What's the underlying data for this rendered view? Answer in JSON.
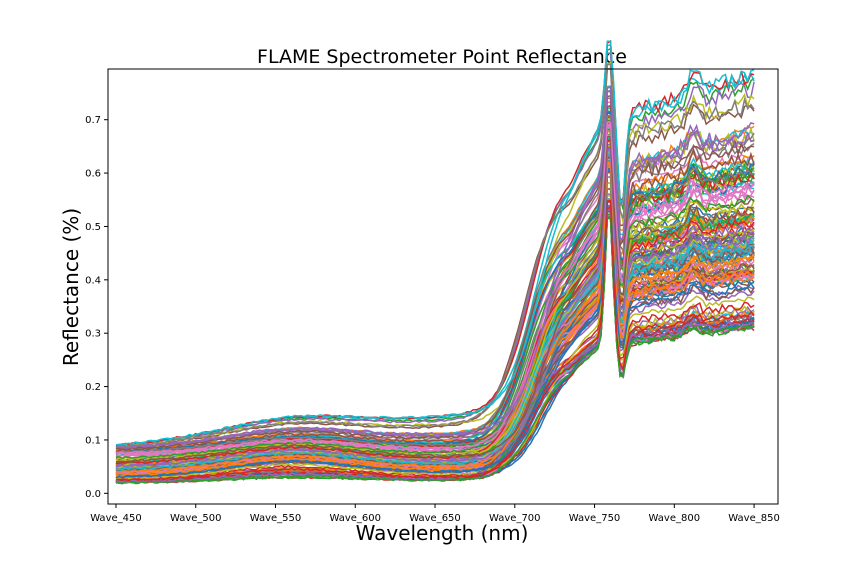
{
  "chart_data": {
    "type": "line",
    "title": "FLAME Spectrometer Point Reflectance",
    "xlabel": "Wavelength (nm)",
    "ylabel": "Reflectance (%)",
    "x_range": [
      450,
      850
    ],
    "xlim": [
      445,
      865
    ],
    "ylim": [
      -0.02,
      0.795
    ],
    "x_ticks": [
      {
        "value": 450,
        "label": "Wave_450"
      },
      {
        "value": 500,
        "label": "Wave_500"
      },
      {
        "value": 550,
        "label": "Wave_550"
      },
      {
        "value": 600,
        "label": "Wave_600"
      },
      {
        "value": 650,
        "label": "Wave_650"
      },
      {
        "value": 700,
        "label": "Wave_700"
      },
      {
        "value": 750,
        "label": "Wave_750"
      },
      {
        "value": 800,
        "label": "Wave_800"
      },
      {
        "value": 850,
        "label": "Wave_850"
      }
    ],
    "y_ticks": [
      {
        "value": 0.0,
        "label": "0.0"
      },
      {
        "value": 0.1,
        "label": "0.1"
      },
      {
        "value": 0.2,
        "label": "0.2"
      },
      {
        "value": 0.3,
        "label": "0.3"
      },
      {
        "value": 0.4,
        "label": "0.4"
      },
      {
        "value": 0.5,
        "label": "0.5"
      },
      {
        "value": 0.6,
        "label": "0.6"
      },
      {
        "value": 0.7,
        "label": "0.7"
      }
    ],
    "grid": false,
    "legend": "none",
    "colors": [
      "#1f77b4",
      "#ff7f0e",
      "#2ca02c",
      "#d62728",
      "#9467bd",
      "#8c564b",
      "#e377c2",
      "#7f7f7f",
      "#bcbd22",
      "#17becf"
    ],
    "series_note_count": 200,
    "representative_series": [
      {
        "start": 0.02,
        "green": 0.03,
        "red": 0.025,
        "nir": 0.24,
        "peak": 0.47,
        "color": "#2ca02c"
      },
      {
        "start": 0.025,
        "green": 0.045,
        "red": 0.03,
        "nir": 0.26,
        "peak": 0.5,
        "color": "#d62728"
      },
      {
        "start": 0.03,
        "green": 0.06,
        "red": 0.04,
        "nir": 0.3,
        "peak": 0.55,
        "color": "#1f77b4"
      },
      {
        "start": 0.04,
        "green": 0.07,
        "red": 0.05,
        "nir": 0.34,
        "peak": 0.56,
        "color": "#ff7f0e"
      },
      {
        "start": 0.05,
        "green": 0.08,
        "red": 0.06,
        "nir": 0.37,
        "peak": 0.58,
        "color": "#9467bd"
      },
      {
        "start": 0.06,
        "green": 0.09,
        "red": 0.07,
        "nir": 0.41,
        "peak": 0.6,
        "color": "#8c564b"
      },
      {
        "start": 0.075,
        "green": 0.1,
        "red": 0.085,
        "nir": 0.45,
        "peak": 0.62,
        "color": "#e377c2"
      },
      {
        "start": 0.085,
        "green": 0.12,
        "red": 0.11,
        "nir": 0.52,
        "peak": 0.67,
        "color": "#9467bd"
      },
      {
        "start": 0.09,
        "green": 0.145,
        "red": 0.15,
        "nir": 0.61,
        "peak": 0.75,
        "color": "#17becf"
      }
    ]
  }
}
